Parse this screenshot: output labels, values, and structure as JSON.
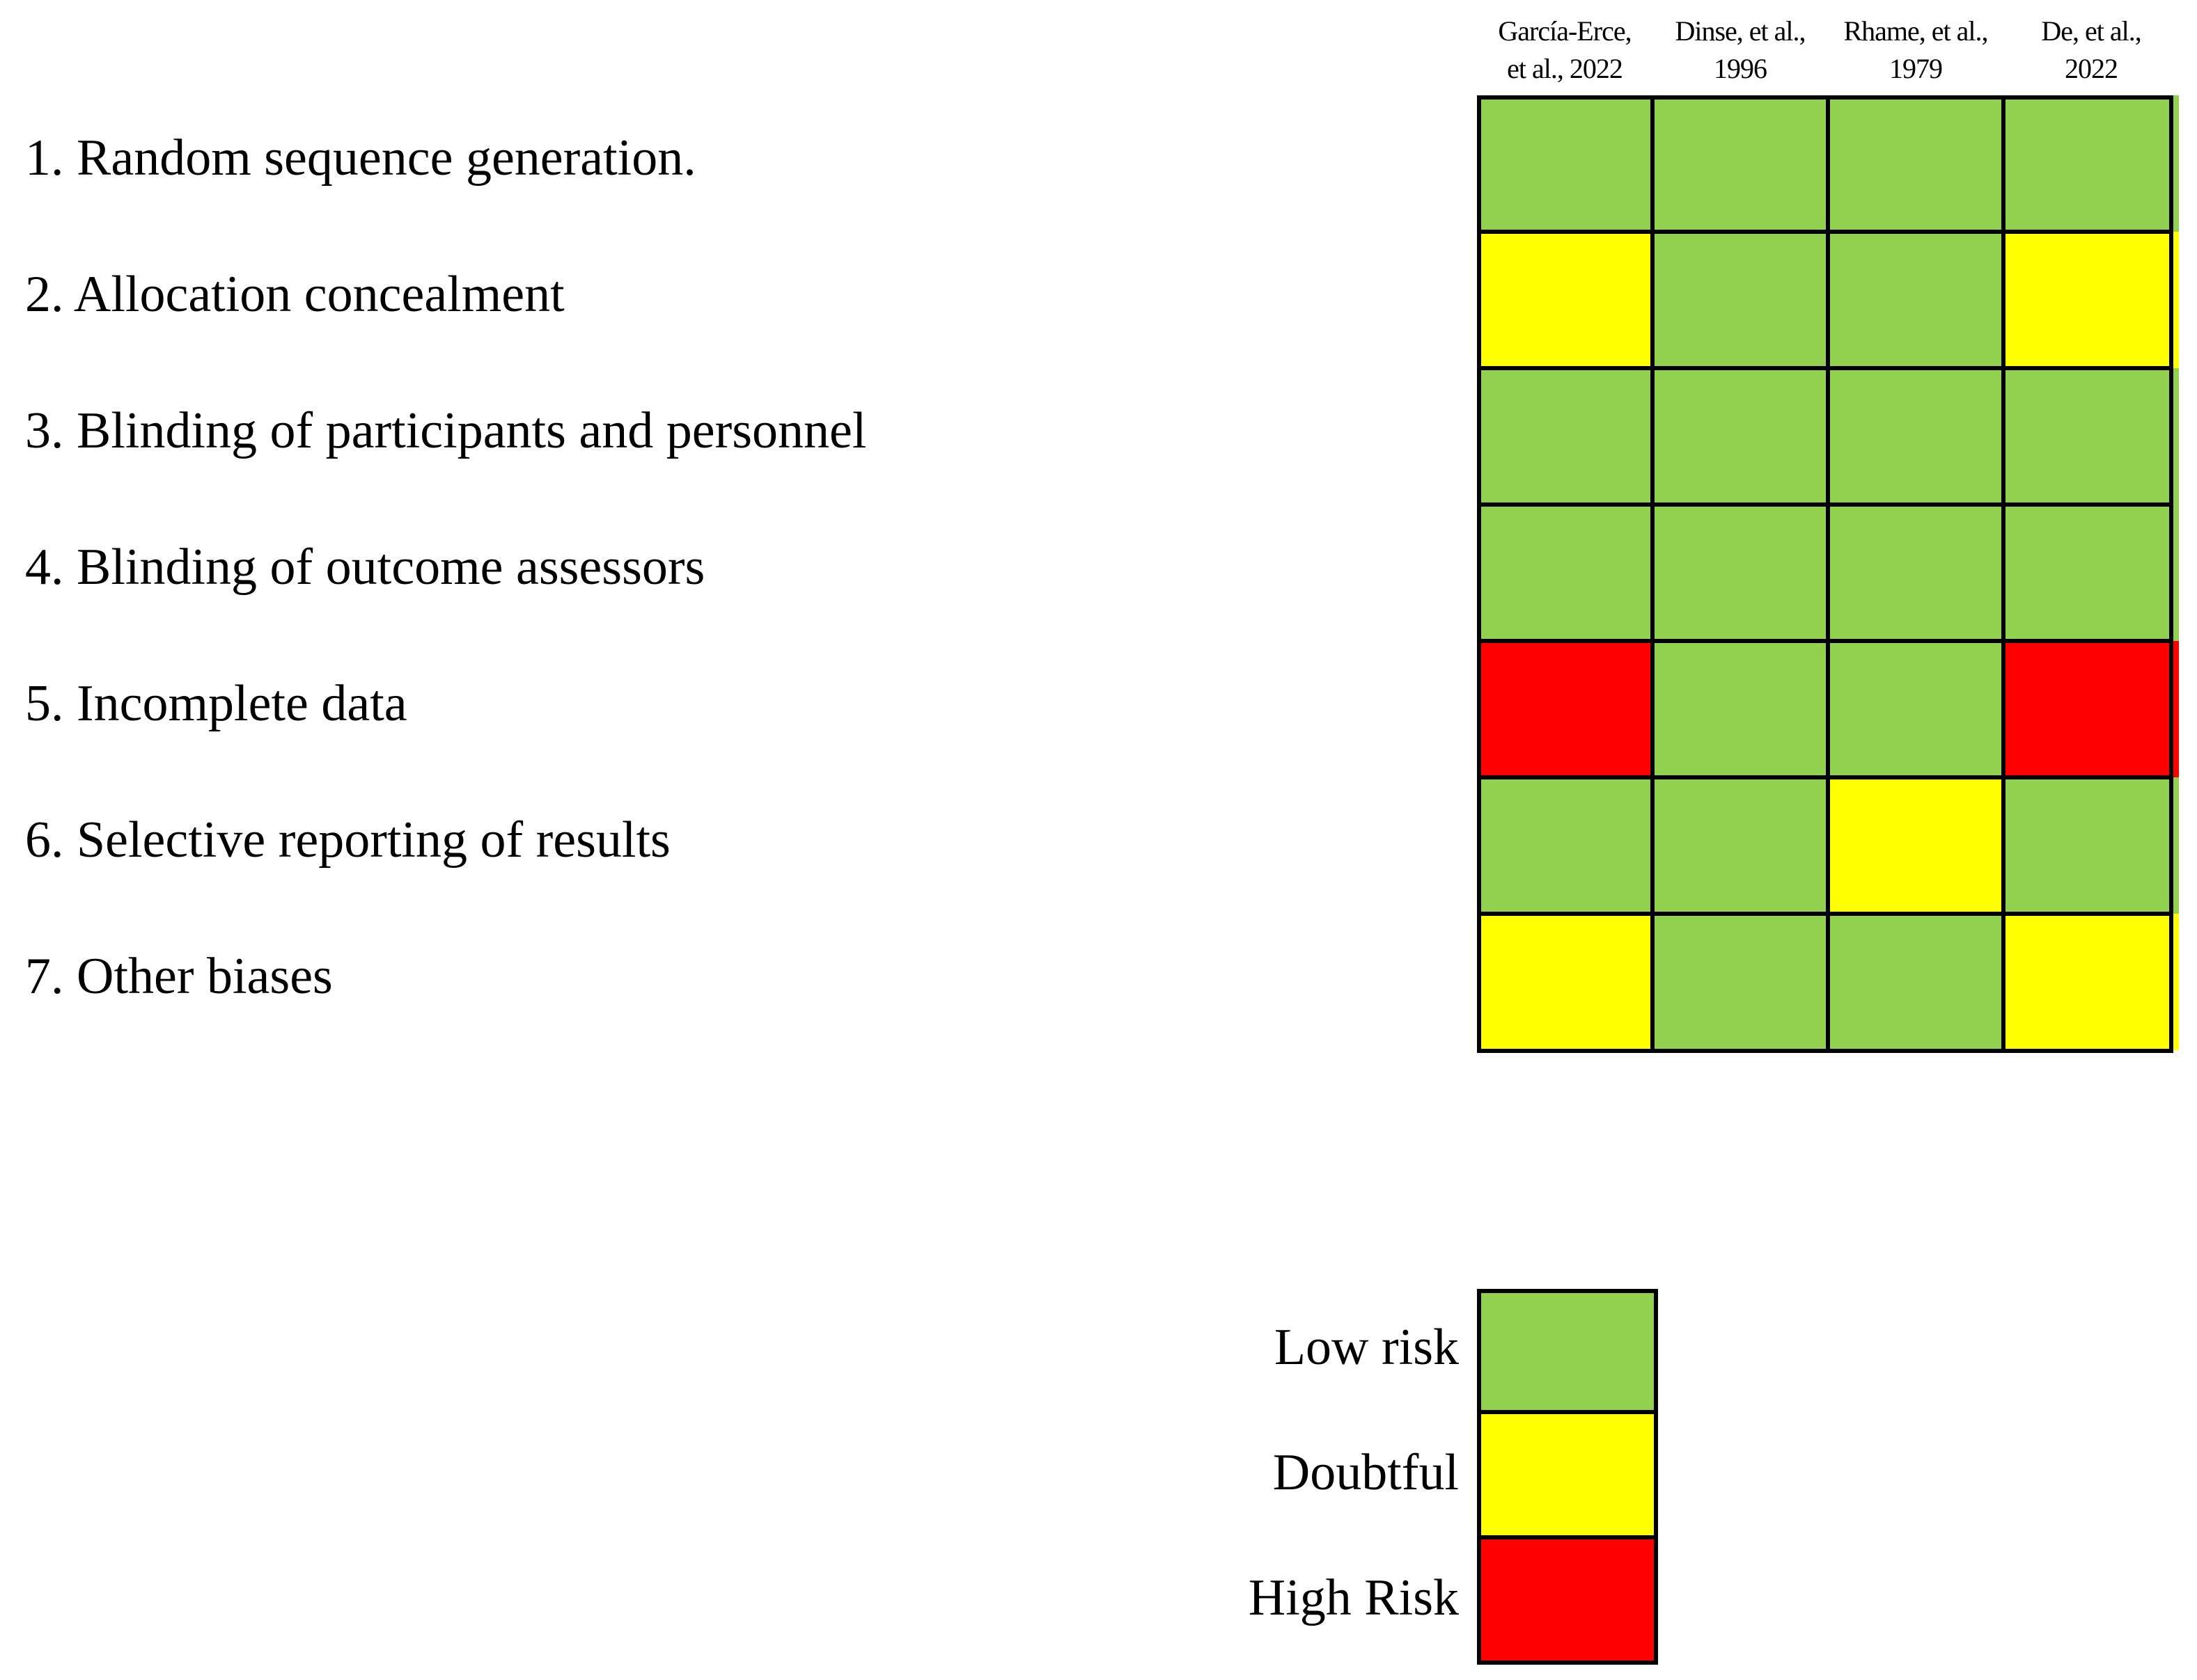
{
  "chart_data": {
    "type": "heatmap",
    "studies": [
      [
        "García-Erce,",
        "et al., 2022"
      ],
      [
        "Dinse, et al.,",
        "1996"
      ],
      [
        "Rhame, et al.,",
        "1979"
      ],
      [
        "De, et al.,",
        "2022"
      ]
    ],
    "domains": [
      "1. Random sequence generation.",
      "2. Allocation concealment",
      "3. Blinding of participants and personnel",
      "4. Blinding of outcome assessors",
      "5. Incomplete data",
      "6. Selective reporting of results",
      "7. Other biases"
    ],
    "ratings": [
      [
        "Low risk",
        "Low risk",
        "Low risk",
        "Low risk"
      ],
      [
        "Doubtful",
        "Low risk",
        "Low risk",
        "Doubtful"
      ],
      [
        "Low risk",
        "Low risk",
        "Low risk",
        "Low risk"
      ],
      [
        "Low risk",
        "Low risk",
        "Low risk",
        "Low risk"
      ],
      [
        "High Risk",
        "Low risk",
        "Low risk",
        "High Risk"
      ],
      [
        "Low risk",
        "Low risk",
        "Doubtful",
        "Low risk"
      ],
      [
        "Doubtful",
        "Low risk",
        "Low risk",
        "Doubtful"
      ]
    ],
    "legend": [
      {
        "label": "Low risk",
        "color": "#92d050"
      },
      {
        "label": "Doubtful",
        "color": "#ffff00"
      },
      {
        "label": "High Risk",
        "color": "#ff0000"
      }
    ]
  }
}
